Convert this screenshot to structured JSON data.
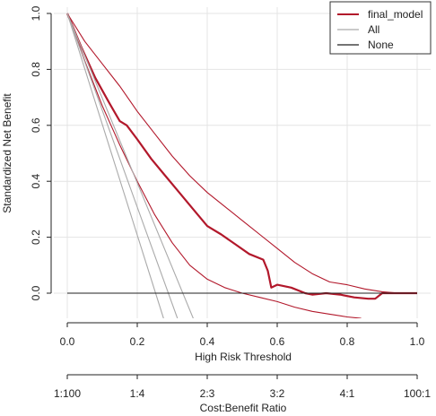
{
  "chart_data": {
    "type": "line",
    "xlabel": "High Risk Threshold",
    "ylabel": "Standardized Net Benefit",
    "xlim": [
      0,
      1
    ],
    "ylim": [
      -0.09,
      1.0
    ],
    "x_ticks": [
      "0.0",
      "0.2",
      "0.4",
      "0.6",
      "0.8",
      "1.0"
    ],
    "y_ticks": [
      "0.0",
      "0.2",
      "0.4",
      "0.6",
      "0.8",
      "1.0"
    ],
    "grid": true,
    "legend_position": "top-right",
    "secondary_axis": {
      "label": "Cost:Benefit Ratio",
      "ticks": [
        {
          "x": 0.0,
          "label": "1:100"
        },
        {
          "x": 0.2,
          "label": "1:4"
        },
        {
          "x": 0.4,
          "label": "2:3"
        },
        {
          "x": 0.6,
          "label": "3:2"
        },
        {
          "x": 0.8,
          "label": "4:1"
        },
        {
          "x": 1.0,
          "label": "100:1"
        }
      ]
    },
    "series": [
      {
        "name": "final_model",
        "color": "#b2182b",
        "values": [
          [
            0.0,
            1.0
          ],
          [
            0.04,
            0.88
          ],
          [
            0.08,
            0.77
          ],
          [
            0.12,
            0.68
          ],
          [
            0.15,
            0.615
          ],
          [
            0.17,
            0.6
          ],
          [
            0.2,
            0.55
          ],
          [
            0.24,
            0.48
          ],
          [
            0.28,
            0.42
          ],
          [
            0.32,
            0.36
          ],
          [
            0.36,
            0.3
          ],
          [
            0.4,
            0.24
          ],
          [
            0.44,
            0.21
          ],
          [
            0.48,
            0.175
          ],
          [
            0.52,
            0.14
          ],
          [
            0.56,
            0.12
          ],
          [
            0.573,
            0.08
          ],
          [
            0.583,
            0.02
          ],
          [
            0.6,
            0.03
          ],
          [
            0.64,
            0.02
          ],
          [
            0.68,
            0.0
          ],
          [
            0.7,
            -0.005
          ],
          [
            0.74,
            0.0
          ],
          [
            0.78,
            -0.005
          ],
          [
            0.82,
            -0.015
          ],
          [
            0.86,
            -0.02
          ],
          [
            0.88,
            -0.02
          ],
          [
            0.9,
            0.0
          ],
          [
            1.0,
            0.0
          ]
        ]
      },
      {
        "name": "",
        "color": "#b2182b",
        "values": [
          [
            0.0,
            1.0
          ],
          [
            0.05,
            0.9
          ],
          [
            0.1,
            0.82
          ],
          [
            0.15,
            0.74
          ],
          [
            0.2,
            0.65
          ],
          [
            0.25,
            0.57
          ],
          [
            0.3,
            0.49
          ],
          [
            0.35,
            0.42
          ],
          [
            0.4,
            0.36
          ],
          [
            0.45,
            0.31
          ],
          [
            0.5,
            0.26
          ],
          [
            0.55,
            0.21
          ],
          [
            0.6,
            0.16
          ],
          [
            0.65,
            0.11
          ],
          [
            0.7,
            0.07
          ],
          [
            0.75,
            0.04
          ],
          [
            0.8,
            0.03
          ],
          [
            0.85,
            0.015
          ],
          [
            0.9,
            0.005
          ],
          [
            0.95,
            0.0
          ],
          [
            1.0,
            0.0
          ]
        ]
      },
      {
        "name": "",
        "color": "#b2182b",
        "values": [
          [
            0.0,
            1.0
          ],
          [
            0.05,
            0.83
          ],
          [
            0.1,
            0.67
          ],
          [
            0.15,
            0.53
          ],
          [
            0.2,
            0.4
          ],
          [
            0.25,
            0.28
          ],
          [
            0.3,
            0.18
          ],
          [
            0.35,
            0.1
          ],
          [
            0.4,
            0.05
          ],
          [
            0.45,
            0.02
          ],
          [
            0.5,
            0.0
          ],
          [
            0.55,
            -0.015
          ],
          [
            0.6,
            -0.03
          ],
          [
            0.65,
            -0.05
          ],
          [
            0.7,
            -0.065
          ],
          [
            0.75,
            -0.075
          ],
          [
            0.8,
            -0.085
          ],
          [
            0.84,
            -0.09
          ]
        ]
      },
      {
        "name": "All",
        "color": "#aaaaaa",
        "values": [
          [
            0.0,
            1.0
          ],
          [
            0.315,
            -0.09
          ]
        ]
      },
      {
        "name": "",
        "color": "#aaaaaa",
        "values": [
          [
            0.0,
            1.0
          ],
          [
            0.275,
            -0.09
          ]
        ]
      },
      {
        "name": "",
        "color": "#aaaaaa",
        "values": [
          [
            0.0,
            1.0
          ],
          [
            0.36,
            -0.09
          ]
        ]
      },
      {
        "name": "None",
        "color": "#222222",
        "values": [
          [
            0.0,
            0.0
          ],
          [
            1.0,
            0.0
          ]
        ]
      }
    ],
    "legend": [
      {
        "label": "final_model",
        "color": "#b2182b"
      },
      {
        "label": "All",
        "color": "#aaaaaa"
      },
      {
        "label": "None",
        "color": "#222222"
      }
    ]
  }
}
